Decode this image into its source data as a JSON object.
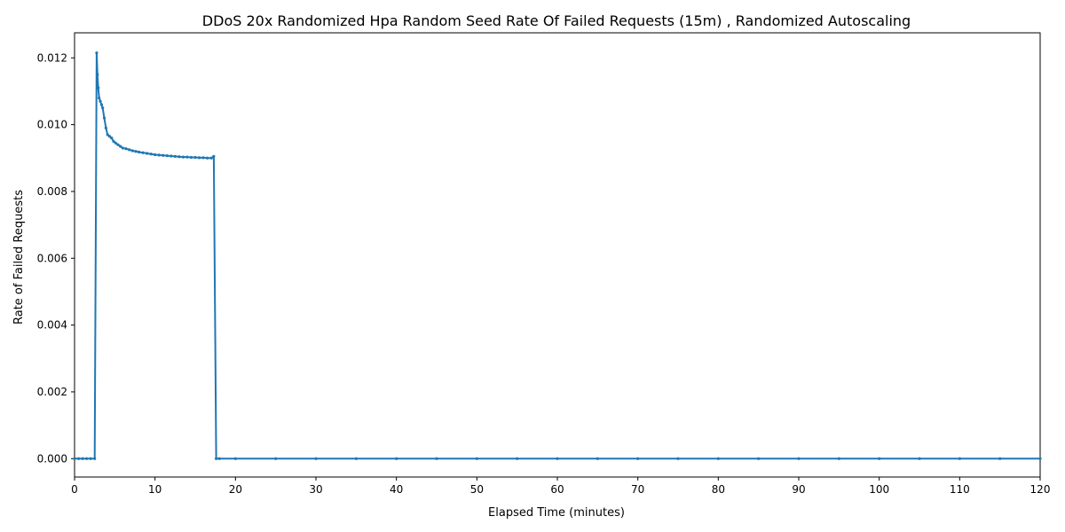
{
  "chart_data": {
    "type": "line",
    "title": "DDoS 20x Randomized Hpa Random Seed Rate Of Failed Requests (15m) , Randomized Autoscaling",
    "xlabel": "Elapsed Time (minutes)",
    "ylabel": "Rate of Failed Requests",
    "xlim": [
      0,
      120
    ],
    "ylim": [
      -0.00055,
      0.01275
    ],
    "xticks": [
      0,
      10,
      20,
      30,
      40,
      50,
      60,
      70,
      80,
      90,
      100,
      110,
      120
    ],
    "yticks": [
      0.0,
      0.002,
      0.004,
      0.006,
      0.008,
      0.01,
      0.012
    ],
    "ytick_labels": [
      "0.000",
      "0.002",
      "0.004",
      "0.006",
      "0.008",
      "0.010",
      "0.012"
    ],
    "grid": false,
    "legend": "none",
    "color": "#1f77b4",
    "series": [
      {
        "x": [
          0,
          0.5,
          1.0,
          1.5,
          2.0,
          2.5,
          2.75,
          2.85,
          2.95,
          3.05,
          3.2,
          3.35,
          3.5,
          3.7,
          3.9,
          4.1,
          4.35,
          4.6,
          4.85,
          5.1,
          5.4,
          5.7,
          6.0,
          6.4,
          6.8,
          7.2,
          7.6,
          8.0,
          8.5,
          9.0,
          9.5,
          10.0,
          10.5,
          11.0,
          11.5,
          12.0,
          12.5,
          13.0,
          13.5,
          14.0,
          14.5,
          15.0,
          15.5,
          16.0,
          16.5,
          17.0,
          17.3,
          17.6,
          18.0,
          20,
          25,
          30,
          35,
          40,
          45,
          50,
          55,
          60,
          65,
          70,
          75,
          80,
          85,
          90,
          95,
          100,
          105,
          110,
          115,
          120
        ],
        "y": [
          0,
          0,
          0,
          0,
          0,
          0,
          0.01215,
          0.0115,
          0.0111,
          0.0108,
          0.0107,
          0.0106,
          0.0105,
          0.0102,
          0.0099,
          0.0097,
          0.00965,
          0.0096,
          0.0095,
          0.00945,
          0.0094,
          0.00935,
          0.0093,
          0.00928,
          0.00925,
          0.00922,
          0.0092,
          0.00918,
          0.00916,
          0.00914,
          0.00912,
          0.0091,
          0.00909,
          0.00908,
          0.00907,
          0.00906,
          0.00905,
          0.00904,
          0.00903,
          0.00903,
          0.00902,
          0.00902,
          0.00901,
          0.00901,
          0.009,
          0.009,
          0.00905,
          0,
          0,
          0,
          0,
          0,
          0,
          0,
          0,
          0,
          0,
          0,
          0,
          0,
          0,
          0,
          0,
          0,
          0,
          0,
          0,
          0,
          0,
          0
        ]
      }
    ]
  }
}
